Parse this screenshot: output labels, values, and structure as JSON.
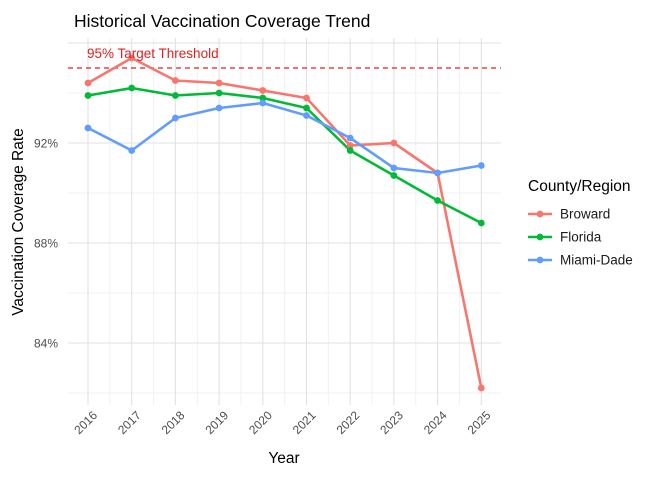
{
  "title": "Historical Vaccination Coverage Trend",
  "axes": {
    "x_title": "Year",
    "y_title": "Vaccination Coverage Rate",
    "x_tick_labels": [
      "2016",
      "2017",
      "2018",
      "2019",
      "2020",
      "2021",
      "2022",
      "2023",
      "2024",
      "2025"
    ],
    "y_tick_labels": [
      "84%",
      "88%",
      "92%"
    ]
  },
  "legend": {
    "title": "County/Region",
    "items": [
      {
        "label": "Broward",
        "color": "#F8766D"
      },
      {
        "label": "Florida",
        "color": "#00BA38"
      },
      {
        "label": "Miami-Dade",
        "color": "#619CFF"
      }
    ]
  },
  "chart_data": {
    "type": "line",
    "title": "Historical Vaccination Coverage Trend",
    "xlabel": "Year",
    "ylabel": "Vaccination Coverage Rate",
    "categories": [
      2016,
      2017,
      2018,
      2019,
      2020,
      2021,
      2022,
      2023,
      2024,
      2025
    ],
    "series": [
      {
        "name": "Broward",
        "color": "#F8766D",
        "values": [
          94.4,
          95.4,
          94.5,
          94.4,
          94.1,
          93.8,
          91.9,
          92.0,
          90.8,
          82.2
        ]
      },
      {
        "name": "Florida",
        "color": "#00BA38",
        "values": [
          93.9,
          94.2,
          93.9,
          94.0,
          93.8,
          93.4,
          91.7,
          90.7,
          89.7,
          88.8
        ]
      },
      {
        "name": "Miami-Dade",
        "color": "#619CFF",
        "values": [
          92.6,
          91.7,
          93.0,
          93.4,
          93.6,
          93.1,
          92.2,
          91.0,
          90.8,
          91.1
        ]
      }
    ],
    "threshold": {
      "value": 95,
      "label": "95% Target Threshold",
      "color": "#E02020",
      "style": "dashed"
    },
    "y_ticks": [
      {
        "value": 84,
        "label": "84%"
      },
      {
        "value": 88,
        "label": "88%"
      },
      {
        "value": 92,
        "label": "92%"
      }
    ],
    "y_gridlines_major": [
      84,
      88,
      92,
      96
    ],
    "y_gridlines_minor": [
      82,
      86,
      90,
      94
    ],
    "ylim": [
      81.5,
      96.3
    ],
    "grid": true,
    "legend_position": "right"
  }
}
